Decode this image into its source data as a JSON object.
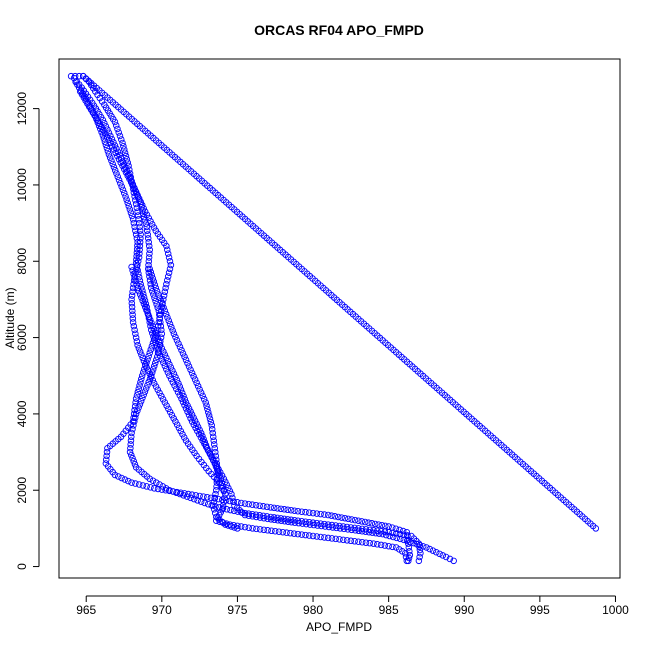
{
  "chart_data": {
    "type": "scatter",
    "title": "ORCAS RF04 APO_FMPD",
    "xlabel": "APO_FMPD",
    "ylabel": "Altitude (m)",
    "xlim": [
      963.2,
      1000.3
    ],
    "ylim": [
      -300,
      13300
    ],
    "x_ticks": [
      965,
      970,
      975,
      980,
      985,
      990,
      995,
      1000
    ],
    "y_ticks": [
      0,
      2000,
      4000,
      6000,
      8000,
      10000,
      12000
    ],
    "grid": false,
    "marker": "open-circle",
    "color": "#0000ff",
    "series": [
      {
        "points": [
          [
            964.0,
            12850
          ],
          [
            964.8,
            12850
          ],
          [
            965.2,
            12700
          ],
          [
            965.6,
            12450
          ],
          [
            966.2,
            12100
          ],
          [
            966.9,
            11650
          ],
          [
            967.4,
            11100
          ],
          [
            967.8,
            10500
          ],
          [
            968.1,
            9900
          ],
          [
            968.4,
            9300
          ],
          [
            968.6,
            8700
          ],
          [
            968.5,
            8100
          ],
          [
            968.2,
            7600
          ],
          [
            968.0,
            7000
          ],
          [
            968.1,
            6400
          ],
          [
            968.4,
            5800
          ],
          [
            968.9,
            5300
          ],
          [
            969.5,
            4800
          ],
          [
            970.2,
            4300
          ],
          [
            970.9,
            3800
          ],
          [
            971.6,
            3300
          ],
          [
            972.3,
            2900
          ],
          [
            973.1,
            2500
          ],
          [
            973.8,
            2200
          ],
          [
            974.2,
            1900
          ],
          [
            974.0,
            1500
          ],
          [
            973.6,
            1200
          ],
          [
            974.5,
            1100
          ],
          [
            976.0,
            1000
          ],
          [
            978.0,
            900
          ],
          [
            980.0,
            800
          ],
          [
            982.0,
            700
          ],
          [
            984.0,
            600
          ],
          [
            985.5,
            500
          ],
          [
            986.1,
            350
          ],
          [
            986.2,
            150
          ]
        ]
      },
      {
        "points": [
          [
            964.2,
            12800
          ],
          [
            964.7,
            12550
          ],
          [
            965.4,
            12150
          ],
          [
            966.1,
            11700
          ],
          [
            966.7,
            11200
          ],
          [
            967.3,
            10700
          ],
          [
            968.0,
            10100
          ],
          [
            968.6,
            9500
          ],
          [
            969.0,
            8900
          ],
          [
            969.2,
            8300
          ],
          [
            969.1,
            7800
          ],
          [
            969.3,
            7300
          ],
          [
            969.8,
            6700
          ],
          [
            970.0,
            6100
          ],
          [
            969.7,
            5500
          ],
          [
            969.3,
            5000
          ],
          [
            968.8,
            4500
          ],
          [
            968.3,
            4000
          ],
          [
            968.0,
            3500
          ],
          [
            967.9,
            3000
          ],
          [
            968.3,
            2600
          ],
          [
            969.2,
            2300
          ],
          [
            970.5,
            2000
          ],
          [
            971.9,
            1800
          ],
          [
            973.3,
            1600
          ],
          [
            974.3,
            1500
          ],
          [
            975.5,
            1400
          ],
          [
            977.2,
            1300
          ],
          [
            979.0,
            1200
          ],
          [
            981.0,
            1100
          ],
          [
            983.0,
            1000
          ],
          [
            985.0,
            900
          ],
          [
            986.5,
            800
          ],
          [
            987.0,
            600
          ],
          [
            987.1,
            350
          ],
          [
            987.0,
            150
          ]
        ]
      },
      {
        "points": [
          [
            964.3,
            12700
          ],
          [
            965.0,
            12250
          ],
          [
            965.6,
            11800
          ],
          [
            966.1,
            11300
          ],
          [
            966.5,
            10800
          ],
          [
            967.0,
            10300
          ],
          [
            967.6,
            9700
          ],
          [
            968.1,
            9100
          ],
          [
            968.4,
            8500
          ],
          [
            968.3,
            7950
          ],
          [
            968.6,
            7400
          ],
          [
            969.0,
            6800
          ],
          [
            969.3,
            6200
          ],
          [
            969.8,
            5600
          ],
          [
            970.5,
            5000
          ],
          [
            971.3,
            4400
          ],
          [
            972.0,
            3800
          ],
          [
            972.7,
            3300
          ],
          [
            973.4,
            2800
          ],
          [
            974.1,
            2300
          ],
          [
            974.6,
            1900
          ],
          [
            974.8,
            1600
          ],
          [
            975.5,
            1350
          ],
          [
            977.0,
            1250
          ],
          [
            978.8,
            1150
          ],
          [
            980.8,
            1050
          ],
          [
            982.8,
            950
          ],
          [
            984.6,
            850
          ],
          [
            986.0,
            700
          ],
          [
            987.5,
            500
          ],
          [
            988.8,
            250
          ],
          [
            989.3,
            150
          ]
        ]
      },
      {
        "points": [
          [
            964.6,
            12450
          ],
          [
            965.2,
            12050
          ],
          [
            965.9,
            11600
          ],
          [
            966.6,
            11100
          ],
          [
            967.4,
            10500
          ],
          [
            968.2,
            9900
          ],
          [
            968.9,
            9300
          ],
          [
            969.6,
            8800
          ],
          [
            970.3,
            8400
          ],
          [
            970.6,
            7900
          ],
          [
            970.3,
            7400
          ],
          [
            970.0,
            6800
          ],
          [
            969.7,
            6200
          ],
          [
            969.2,
            5600
          ],
          [
            968.7,
            5000
          ],
          [
            968.3,
            4400
          ],
          [
            968.1,
            3800
          ],
          [
            967.3,
            3400
          ],
          [
            966.4,
            3100
          ],
          [
            966.3,
            2700
          ],
          [
            966.9,
            2400
          ],
          [
            968.0,
            2200
          ],
          [
            969.5,
            2050
          ],
          [
            971.0,
            1950
          ],
          [
            972.5,
            1850
          ],
          [
            974.0,
            1750
          ],
          [
            975.5,
            1650
          ],
          [
            977.2,
            1550
          ],
          [
            979.0,
            1450
          ],
          [
            981.0,
            1350
          ],
          [
            983.0,
            1200
          ],
          [
            985.0,
            1050
          ],
          [
            986.2,
            900
          ],
          [
            986.3,
            600
          ],
          [
            986.4,
            300
          ],
          [
            986.3,
            150
          ]
        ]
      },
      {
        "points": [
          [
            969.2,
            7800
          ],
          [
            969.6,
            7300
          ],
          [
            970.2,
            6700
          ],
          [
            970.8,
            6100
          ],
          [
            971.5,
            5500
          ],
          [
            972.2,
            4900
          ],
          [
            972.9,
            4300
          ],
          [
            973.3,
            3700
          ],
          [
            973.5,
            3100
          ],
          [
            973.7,
            2500
          ],
          [
            973.6,
            2000
          ],
          [
            973.4,
            1600
          ],
          [
            973.6,
            1300
          ],
          [
            974.2,
            1100
          ],
          [
            975.0,
            1000
          ]
        ]
      },
      {
        "points": [
          [
            968.0,
            7850
          ],
          [
            968.4,
            7300
          ],
          [
            968.9,
            6800
          ],
          [
            969.4,
            6300
          ],
          [
            969.9,
            5800
          ],
          [
            970.5,
            5300
          ],
          [
            971.1,
            4800
          ],
          [
            971.6,
            4300
          ],
          [
            972.1,
            3900
          ],
          [
            972.6,
            3500
          ],
          [
            973.0,
            3100
          ],
          [
            973.5,
            2700
          ],
          [
            973.9,
            2300
          ],
          [
            974.1,
            2000
          ]
        ]
      },
      {
        "points": [
          [
            964.8,
            12850
          ],
          [
            998.7,
            1000
          ]
        ]
      }
    ]
  }
}
